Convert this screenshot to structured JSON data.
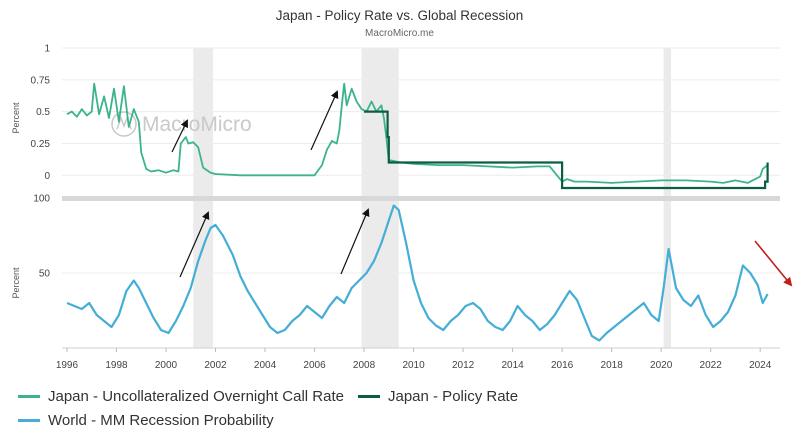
{
  "header": {
    "title": "Japan - Policy Rate vs. Global Recession",
    "subtitle": "MacroMicro.me"
  },
  "watermark": "MacroMicro",
  "colors": {
    "call_rate": "#3cb48a",
    "policy_rate": "#0d5c45",
    "recession_prob": "#45aed6",
    "recession_band": "#ebebeb",
    "arrow_black": "#111111",
    "arrow_red": "#c0201a"
  },
  "chart_data": [
    {
      "type": "line",
      "panel": "top",
      "ylabel": "Percent",
      "ylim": [
        -0.1,
        1
      ],
      "yticks": [
        "1",
        "0.75",
        "0.5",
        "0.25",
        "0"
      ],
      "ytick_values": [
        1,
        0.75,
        0.5,
        0.25,
        0
      ],
      "series": [
        {
          "name": "Japan - Uncollateralized Overnight Call Rate",
          "x": [
            1996.0,
            1996.2,
            1996.4,
            1996.6,
            1996.8,
            1997.0,
            1997.1,
            1997.3,
            1997.5,
            1997.7,
            1997.9,
            1998.1,
            1998.3,
            1998.5,
            1998.7,
            1998.9,
            1999.0,
            1999.2,
            1999.4,
            1999.7,
            2000.0,
            2000.3,
            2000.5,
            2000.6,
            2000.8,
            2000.9,
            2001.1,
            2001.3,
            2001.5,
            2001.8,
            2002.0,
            2003.0,
            2004.0,
            2005.0,
            2006.0,
            2006.3,
            2006.5,
            2006.7,
            2006.9,
            2007.0,
            2007.1,
            2007.2,
            2007.3,
            2007.5,
            2007.7,
            2007.9,
            2008.1,
            2008.3,
            2008.5,
            2008.7,
            2008.8,
            2008.9,
            2009.0,
            2009.5,
            2010.0,
            2011.0,
            2012.0,
            2013.0,
            2014.0,
            2015.0,
            2015.5,
            2016.0,
            2016.2,
            2016.5,
            2017.0,
            2018.0,
            2019.0,
            2020.0,
            2021.0,
            2022.0,
            2022.5,
            2023.0,
            2023.5,
            2023.8,
            2024.0,
            2024.1,
            2024.3
          ],
          "values": [
            0.48,
            0.5,
            0.46,
            0.52,
            0.47,
            0.5,
            0.72,
            0.48,
            0.62,
            0.45,
            0.68,
            0.42,
            0.7,
            0.38,
            0.52,
            0.42,
            0.18,
            0.05,
            0.03,
            0.04,
            0.02,
            0.04,
            0.03,
            0.25,
            0.3,
            0.25,
            0.26,
            0.22,
            0.06,
            0.02,
            0.01,
            0.0,
            0.0,
            0.0,
            0.0,
            0.08,
            0.2,
            0.27,
            0.25,
            0.35,
            0.55,
            0.72,
            0.55,
            0.68,
            0.58,
            0.52,
            0.5,
            0.58,
            0.5,
            0.55,
            0.45,
            0.3,
            0.12,
            0.1,
            0.09,
            0.08,
            0.08,
            0.07,
            0.06,
            0.07,
            0.07,
            -0.05,
            -0.03,
            -0.05,
            -0.05,
            -0.06,
            -0.05,
            -0.04,
            -0.04,
            -0.05,
            -0.06,
            -0.04,
            -0.06,
            -0.03,
            -0.01,
            0.05,
            0.08
          ]
        },
        {
          "name": "Japan - Policy Rate",
          "x": [
            2008.0,
            2008.9,
            2008.95,
            2009.0,
            2015.99,
            2016.0,
            2024.15,
            2024.2,
            2024.3
          ],
          "values": [
            0.5,
            0.5,
            0.3,
            0.1,
            0.1,
            -0.1,
            -0.1,
            -0.05,
            0.1
          ]
        }
      ]
    },
    {
      "type": "line",
      "panel": "bottom",
      "ylabel": "Percent",
      "ylim": [
        0,
        100
      ],
      "yticks": [
        "100",
        "50"
      ],
      "ytick_values": [
        100,
        50
      ],
      "xlabel": "",
      "xlim": [
        1995.8,
        2024.8
      ],
      "xticks": [
        "1996",
        "1998",
        "2000",
        "2002",
        "2004",
        "2006",
        "2008",
        "2010",
        "2012",
        "2014",
        "2016",
        "2018",
        "2020",
        "2022",
        "2024"
      ],
      "xtick_values": [
        1996,
        1998,
        2000,
        2002,
        2004,
        2006,
        2008,
        2010,
        2012,
        2014,
        2016,
        2018,
        2020,
        2022,
        2024
      ],
      "recession_bands": [
        [
          2001.1,
          2001.9
        ],
        [
          2007.9,
          2009.4
        ],
        [
          2020.1,
          2020.4
        ]
      ],
      "series": [
        {
          "name": "World - MM Recession Probability",
          "x": [
            1996.0,
            1996.3,
            1996.6,
            1996.9,
            1997.2,
            1997.5,
            1997.8,
            1998.1,
            1998.4,
            1998.7,
            1998.9,
            1999.2,
            1999.5,
            1999.8,
            2000.1,
            2000.4,
            2000.7,
            2001.0,
            2001.3,
            2001.6,
            2001.8,
            2002.0,
            2002.3,
            2002.7,
            2003.0,
            2003.3,
            2003.6,
            2003.9,
            2004.2,
            2004.5,
            2004.8,
            2005.1,
            2005.4,
            2005.7,
            2006.0,
            2006.3,
            2006.6,
            2006.9,
            2007.2,
            2007.5,
            2007.8,
            2008.1,
            2008.4,
            2008.7,
            2009.0,
            2009.2,
            2009.4,
            2009.7,
            2010.0,
            2010.3,
            2010.6,
            2010.9,
            2011.2,
            2011.5,
            2011.8,
            2012.1,
            2012.4,
            2012.7,
            2013.0,
            2013.3,
            2013.6,
            2013.9,
            2014.2,
            2014.5,
            2014.8,
            2015.1,
            2015.4,
            2015.7,
            2016.0,
            2016.3,
            2016.6,
            2016.9,
            2017.2,
            2017.5,
            2017.8,
            2018.1,
            2018.4,
            2018.7,
            2019.0,
            2019.3,
            2019.6,
            2019.9,
            2020.1,
            2020.3,
            2020.6,
            2020.9,
            2021.2,
            2021.5,
            2021.8,
            2022.1,
            2022.4,
            2022.7,
            2023.0,
            2023.3,
            2023.6,
            2023.9,
            2024.1,
            2024.3
          ],
          "values": [
            30,
            28,
            26,
            30,
            22,
            18,
            14,
            22,
            38,
            45,
            40,
            30,
            20,
            12,
            10,
            18,
            28,
            40,
            58,
            72,
            80,
            82,
            75,
            62,
            48,
            38,
            30,
            22,
            14,
            10,
            12,
            18,
            22,
            28,
            24,
            20,
            28,
            34,
            30,
            40,
            45,
            50,
            58,
            70,
            85,
            95,
            92,
            70,
            45,
            30,
            20,
            15,
            12,
            18,
            22,
            28,
            30,
            26,
            18,
            14,
            12,
            18,
            28,
            22,
            18,
            12,
            16,
            22,
            30,
            38,
            32,
            20,
            8,
            5,
            10,
            14,
            18,
            22,
            26,
            30,
            22,
            18,
            40,
            66,
            40,
            32,
            28,
            35,
            22,
            14,
            18,
            24,
            35,
            55,
            50,
            42,
            30,
            36
          ]
        }
      ]
    }
  ],
  "legend": {
    "items": [
      {
        "label": "Japan - Uncollateralized Overnight Call Rate"
      },
      {
        "label": "Japan - Policy Rate"
      },
      {
        "label": "World - MM Recession Probability"
      }
    ]
  }
}
